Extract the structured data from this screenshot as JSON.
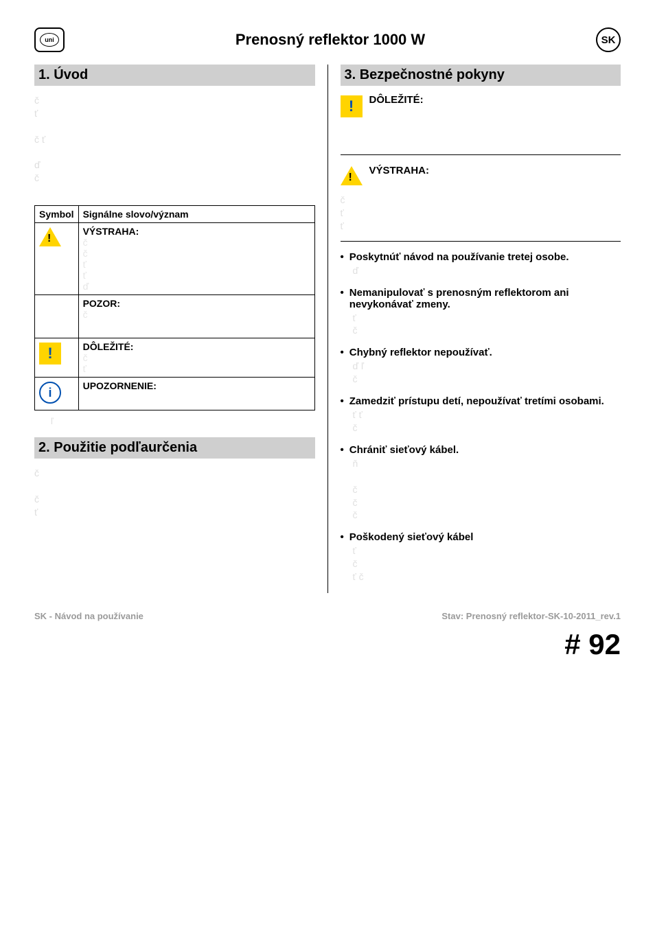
{
  "header": {
    "logo_text": "uni",
    "title": "Prenosný reflektor 1000 W",
    "lang": "SK"
  },
  "left": {
    "sec1_head": "1.  Úvod",
    "sec1_para": "č\nť\n\nč   ť\n\nď\nč",
    "table": {
      "h1": "Symbol",
      "h2": "Signálne slovo/význam",
      "r1_strong": "VÝSTRAHA:",
      "r1_faint": "č\nč\nť\nť\nď",
      "r2_strong": "POZOR:",
      "r2_faint": "č",
      "r3_strong": "DÔLEŽITÉ:",
      "r3_faint": "č\nť",
      "r4_strong": "UPOZORNENIE:"
    },
    "note_below": "ľ",
    "sec2_head": "2.  Použitie podľaurčenia",
    "sec2_para": "č\n\nč\nť"
  },
  "right": {
    "sec3_head": "3.  Bezpečnostné pokyny",
    "important_label": "DÔLEŽITÉ:",
    "warn_label": "VÝSTRAHA:",
    "warn_body": "č\nť\nť",
    "items": [
      {
        "lead": "Poskytnúť návod na používanie tretej osobe.",
        "body": "ď"
      },
      {
        "lead": "Nemanipulovať s prenosným reflektorom ani nevykonávať zmeny.",
        "body": "ť\nč"
      },
      {
        "lead": "Chybný reflektor nepoužívať.",
        "body": "ď                                ľ\nč"
      },
      {
        "lead": "Zamedziť prístupu detí, nepoužívať tretími osobami.",
        "body": "ť        ť\nč"
      },
      {
        "lead": "Chrániť sieťový kábel.",
        "body": "ň\n\nč\nč\nč"
      },
      {
        "lead": "Poškodený sieťový kábel",
        "body": "ť\nč\nť      č"
      }
    ]
  },
  "footer": {
    "left": "SK - Návod na používanie",
    "right": "Stav: Prenosný reflektor-SK-10-2011_rev.1",
    "page": "# 92"
  },
  "colors": {
    "section_bg": "#cfcfcf",
    "faint_text": "#e0e0e0",
    "warn_yellow": "#ffd400",
    "info_blue": "#0050b0",
    "footer_grey": "#9a9a9a"
  }
}
